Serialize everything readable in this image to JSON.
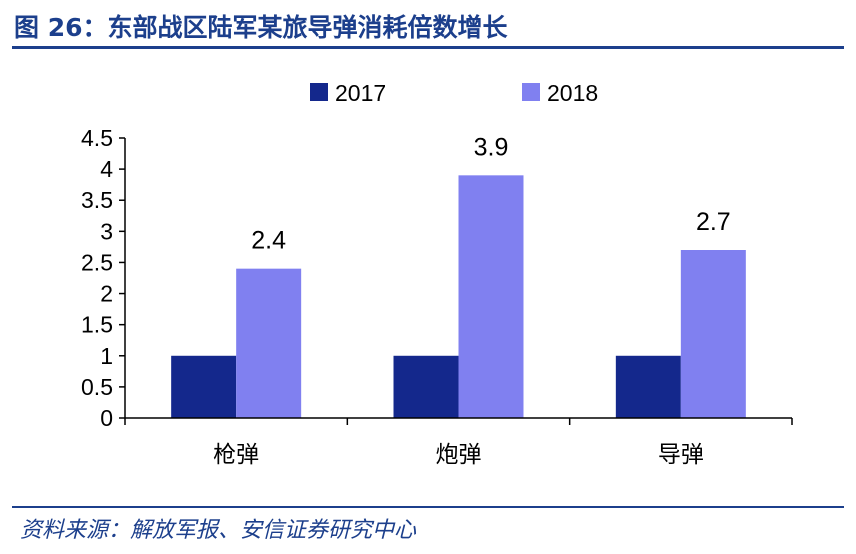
{
  "figure": {
    "title": "图 26：东部战区陆军某旅导弹消耗倍数增长",
    "source": "资料来源：解放军报、安信证券研究中心",
    "title_color": "#1c3f8c"
  },
  "chart_data": {
    "type": "bar",
    "categories": [
      "枪弹",
      "炮弹",
      "导弹"
    ],
    "series": [
      {
        "name": "2017",
        "values": [
          1,
          1,
          1
        ],
        "color": "#14288c",
        "data_labels": [
          "",
          "",
          ""
        ]
      },
      {
        "name": "2018",
        "values": [
          2.4,
          3.9,
          2.7
        ],
        "color": "#8080f0",
        "data_labels": [
          "2.4",
          "3.9",
          "2.7"
        ]
      }
    ],
    "yticks": [
      "0",
      "0.5",
      "1",
      "1.5",
      "2",
      "2.5",
      "3",
      "3.5",
      "4",
      "4.5"
    ],
    "ylim": [
      0,
      4.5
    ],
    "legend_position": "top",
    "grid": false
  }
}
